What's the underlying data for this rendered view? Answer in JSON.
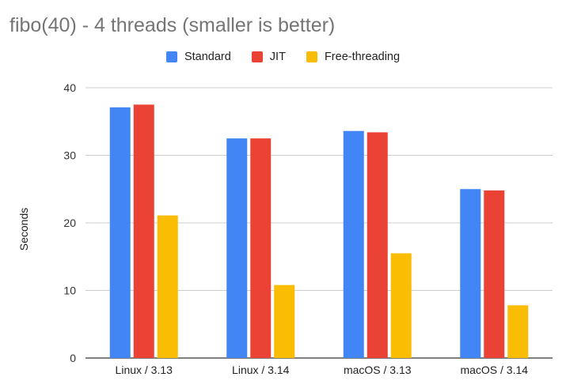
{
  "chart_data": {
    "type": "bar",
    "title": "fibo(40) - 4 threads (smaller is better)",
    "xlabel": "",
    "ylabel": "Seconds",
    "ylim": [
      0,
      40
    ],
    "yticks": [
      0,
      10,
      20,
      30,
      40
    ],
    "categories": [
      "Linux / 3.13",
      "Linux / 3.14",
      "macOS / 3.13",
      "macOS / 3.14"
    ],
    "legend_position": "top-center",
    "grid": true,
    "series": [
      {
        "name": "Standard",
        "color": "#4285f4",
        "values": [
          37.1,
          32.5,
          33.6,
          25.0
        ]
      },
      {
        "name": "JIT",
        "color": "#ea4335",
        "values": [
          37.5,
          32.5,
          33.4,
          24.8
        ]
      },
      {
        "name": "Free-threading",
        "color": "#fbbc04",
        "values": [
          21.1,
          10.8,
          15.5,
          7.8
        ]
      }
    ]
  }
}
